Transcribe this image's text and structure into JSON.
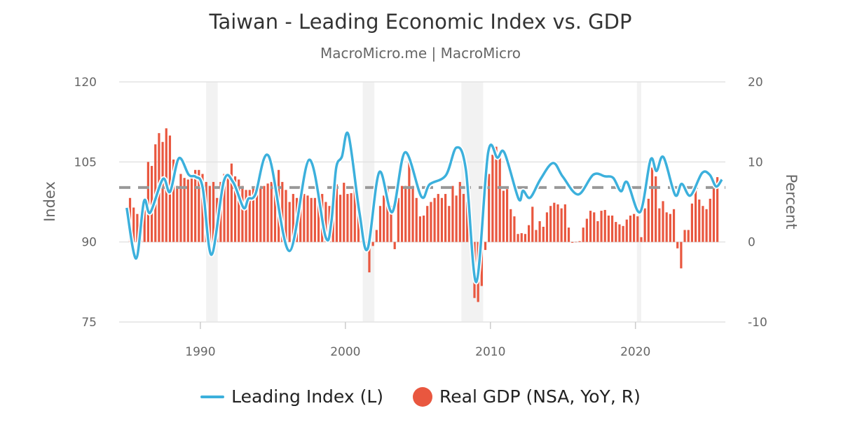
{
  "chart_data": {
    "type": "bar+line",
    "title": "Taiwan - Leading Economic Index vs. GDP",
    "subtitle": "MacroMicro.me | MacroMicro",
    "y_left": {
      "label": "Index",
      "range": [
        75,
        120
      ],
      "ticks": [
        "75",
        "90",
        "105",
        "120"
      ]
    },
    "y_right": {
      "label": "Percent",
      "range": [
        -10,
        20
      ],
      "ticks": [
        "-10",
        "0",
        "10",
        "20"
      ]
    },
    "x": {
      "range": [
        1984.4,
        2026.2
      ],
      "ticks": [
        "1990",
        "2000",
        "2010",
        "2020"
      ]
    },
    "grid": true,
    "legend_position": "bottom",
    "reference_line": {
      "axis": "left",
      "value": 100.2,
      "style": "dashed",
      "color": "#999999"
    },
    "recessions": [
      [
        1990.4,
        1991.2
      ],
      [
        2001.2,
        2002.0
      ],
      [
        2008.0,
        2009.5
      ],
      [
        2020.1,
        2020.4
      ]
    ],
    "series": [
      {
        "name": "Leading Index (L)",
        "type": "line",
        "axis": "left",
        "color": "#3cb0dc",
        "points": [
          [
            1984.92,
            96.4
          ],
          [
            1985.57,
            86.9
          ],
          [
            1986.11,
            97.6
          ],
          [
            1986.54,
            95.5
          ],
          [
            1987.42,
            101.8
          ],
          [
            1987.91,
            99.4
          ],
          [
            1988.52,
            105.7
          ],
          [
            1989.2,
            102.6
          ],
          [
            1989.68,
            102.2
          ],
          [
            1990.16,
            100.2
          ],
          [
            1990.77,
            87.6
          ],
          [
            1991.62,
            101.4
          ],
          [
            1992.26,
            101.2
          ],
          [
            1992.98,
            96.4
          ],
          [
            1993.31,
            98.1
          ],
          [
            1993.79,
            98.9
          ],
          [
            1994.71,
            106.1
          ],
          [
            1996.13,
            88.3
          ],
          [
            1997.5,
            105.4
          ],
          [
            1998.63,
            91.0
          ],
          [
            1999.03,
            93.7
          ],
          [
            1999.36,
            103.8
          ],
          [
            1999.76,
            106.0
          ],
          [
            2000.21,
            110.1
          ],
          [
            2000.97,
            95.5
          ],
          [
            2001.53,
            88.7
          ],
          [
            2002.34,
            103.1
          ],
          [
            2003.23,
            95.6
          ],
          [
            2004.11,
            106.8
          ],
          [
            2005.24,
            98.5
          ],
          [
            2005.81,
            100.8
          ],
          [
            2006.93,
            102.5
          ],
          [
            2007.66,
            107.7
          ],
          [
            2008.31,
            103.5
          ],
          [
            2009.03,
            82.5
          ],
          [
            2009.84,
            106.7
          ],
          [
            2010.48,
            105.8
          ],
          [
            2010.97,
            106.7
          ],
          [
            2011.94,
            98.1
          ],
          [
            2012.25,
            99.6
          ],
          [
            2012.74,
            98.3
          ],
          [
            2013.46,
            101.8
          ],
          [
            2014.32,
            104.8
          ],
          [
            2015.0,
            102.2
          ],
          [
            2016.05,
            98.9
          ],
          [
            2017.09,
            102.6
          ],
          [
            2017.9,
            102.3
          ],
          [
            2018.47,
            102.0
          ],
          [
            2019.0,
            99.5
          ],
          [
            2019.43,
            101.2
          ],
          [
            2020.32,
            95.6
          ],
          [
            2021.04,
            105.4
          ],
          [
            2021.45,
            103.3
          ],
          [
            2021.93,
            105.9
          ],
          [
            2022.74,
            98.8
          ],
          [
            2023.19,
            100.9
          ],
          [
            2023.79,
            98.7
          ],
          [
            2024.59,
            102.9
          ],
          [
            2025.12,
            102.6
          ],
          [
            2025.56,
            100.4
          ],
          [
            2025.96,
            101.7
          ]
        ]
      },
      {
        "name": "Real GDP (NSA, YoY, R)",
        "type": "bar",
        "axis": "right",
        "color": "#e9573f",
        "start_quarter": "1985Q1",
        "values": [
          5.5,
          4.3,
          3.5,
          3.8,
          4.8,
          10.0,
          9.5,
          12.2,
          13.6,
          12.5,
          14.2,
          13.3,
          10.3,
          7.0,
          8.5,
          8.0,
          7.8,
          8.3,
          9.0,
          9.0,
          8.5,
          7.5,
          7.0,
          7.5,
          5.5,
          7.5,
          8.5,
          8.5,
          9.8,
          8.2,
          7.8,
          7.0,
          6.5,
          6.5,
          6.8,
          6.5,
          7.0,
          7.0,
          7.3,
          7.5,
          6.8,
          9.0,
          7.5,
          6.5,
          5.0,
          6.0,
          5.5,
          5.5,
          6.0,
          5.8,
          5.5,
          5.5,
          6.0,
          6.0,
          5.0,
          4.5,
          4.8,
          7.2,
          5.9,
          7.4,
          6.0,
          6.1,
          7.0,
          5.5,
          1.5,
          -1.0,
          -3.8,
          -0.5,
          1.5,
          4.5,
          5.8,
          7.0,
          4.5,
          -0.9,
          5.5,
          7.0,
          7.0,
          10.5,
          7.0,
          5.5,
          3.2,
          3.3,
          4.5,
          5.0,
          5.5,
          6.0,
          5.5,
          6.0,
          4.5,
          7.0,
          5.8,
          7.5,
          6.0,
          5.0,
          -0.2,
          -7.0,
          -7.5,
          -5.5,
          -1.0,
          8.5,
          10.9,
          11.9,
          11.4,
          6.4,
          6.6,
          4.1,
          3.2,
          1.0,
          1.1,
          1.0,
          2.1,
          4.4,
          1.5,
          2.6,
          1.9,
          3.7,
          4.5,
          4.9,
          4.7,
          4.2,
          4.7,
          1.8,
          -0.1,
          0.0,
          0.1,
          1.8,
          2.9,
          3.9,
          3.7,
          2.6,
          3.9,
          4.0,
          3.3,
          3.3,
          2.5,
          2.2,
          2.0,
          2.8,
          3.3,
          3.5,
          3.2,
          0.6,
          4.2,
          5.4,
          9.3,
          8.2,
          4.2,
          5.1,
          3.7,
          3.5,
          4.1,
          -0.8,
          -3.3,
          1.5,
          1.5,
          4.8,
          6.8,
          5.3,
          4.5,
          4.1,
          5.4,
          7.6,
          8.1
        ]
      }
    ]
  }
}
